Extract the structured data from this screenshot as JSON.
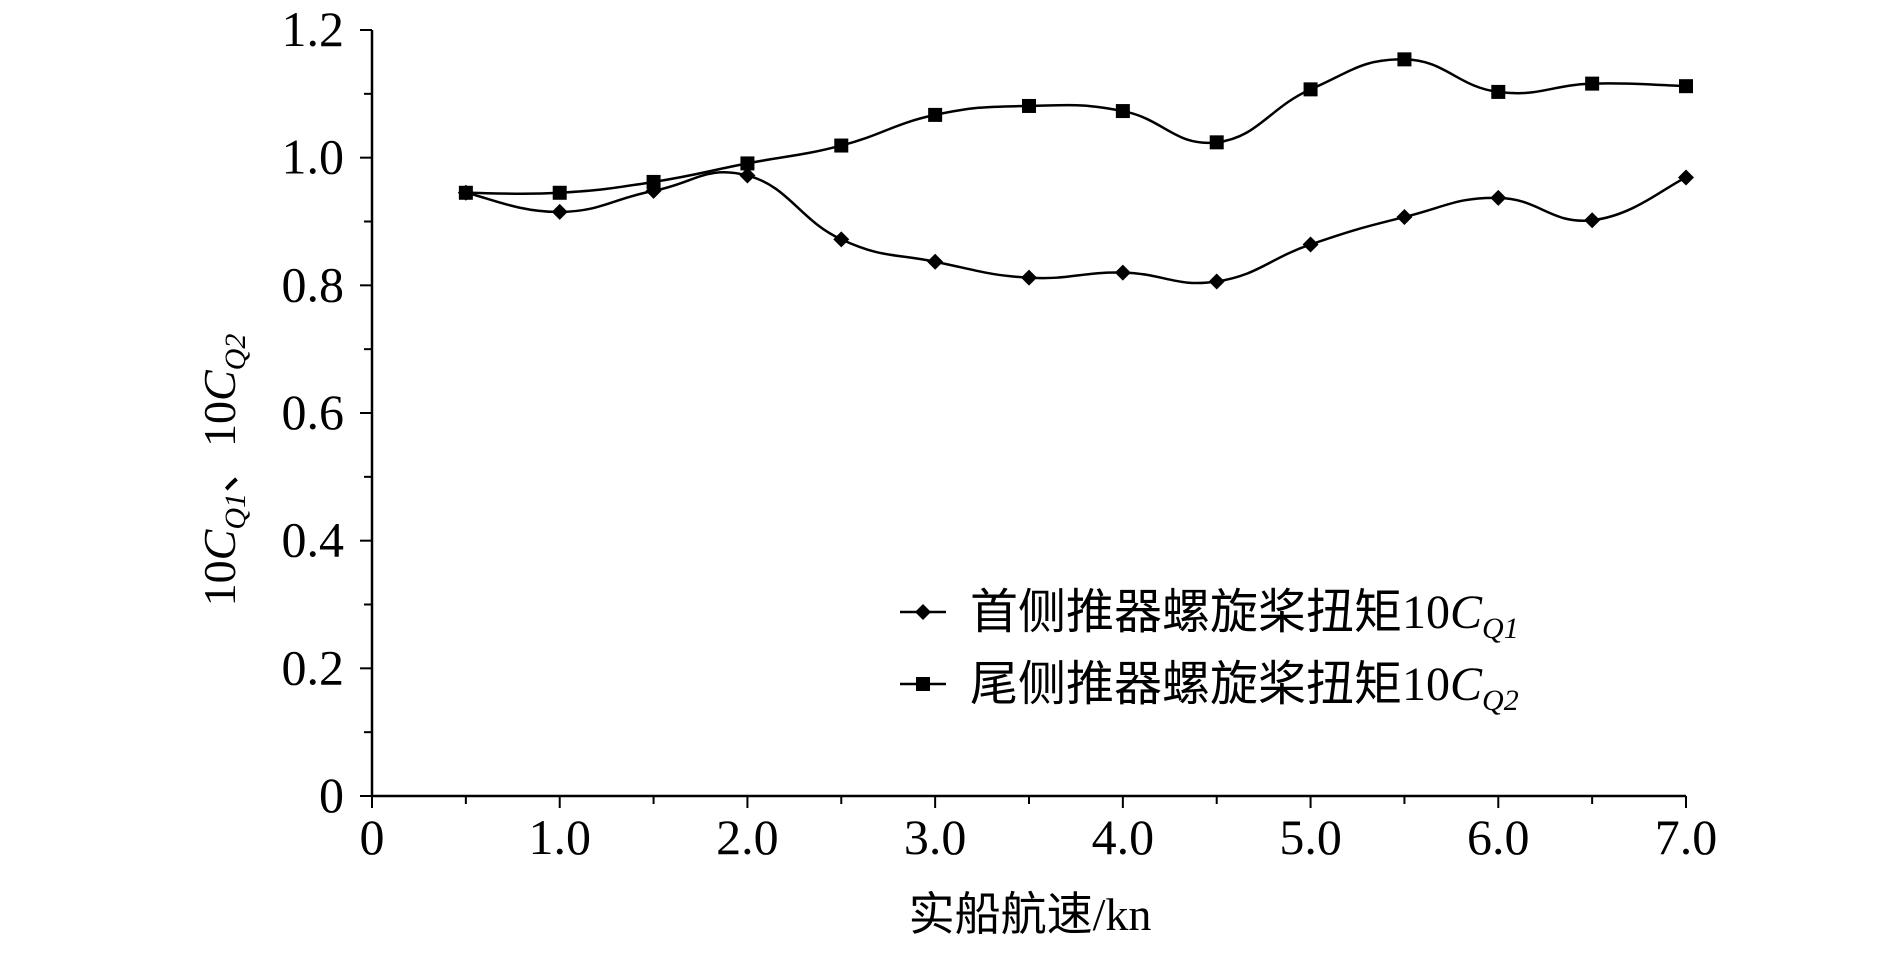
{
  "chart_data": {
    "type": "line",
    "title": "",
    "xlabel": "实船航速/kn",
    "ylabel": {
      "prefix1": "10",
      "var1": "C",
      "sub1": "Q1",
      "separator": "、",
      "prefix2": "10",
      "var2": "C",
      "sub2": "Q2"
    },
    "xlim": [
      0,
      7.0
    ],
    "ylim": [
      0,
      1.2
    ],
    "x_ticks": [
      {
        "value": 0,
        "label": "0"
      },
      {
        "value": 1,
        "label": "1.0"
      },
      {
        "value": 2,
        "label": "2.0"
      },
      {
        "value": 3,
        "label": "3.0"
      },
      {
        "value": 4,
        "label": "4.0"
      },
      {
        "value": 5,
        "label": "5.0"
      },
      {
        "value": 6,
        "label": "6.0"
      },
      {
        "value": 7,
        "label": "7.0"
      }
    ],
    "y_ticks": [
      {
        "value": 0,
        "label": "0"
      },
      {
        "value": 0.2,
        "label": "0.2"
      },
      {
        "value": 0.4,
        "label": "0.4"
      },
      {
        "value": 0.6,
        "label": "0.6"
      },
      {
        "value": 0.8,
        "label": "0.8"
      },
      {
        "value": 1.0,
        "label": "1.0"
      },
      {
        "value": 1.2,
        "label": "1.2"
      }
    ],
    "x_minor_step": 0.5,
    "y_minor_step": 0.1,
    "grid": false,
    "legend_position": "bottom-right",
    "series": [
      {
        "name": "首侧推器螺旋桨扭矩10",
        "name_var": "C",
        "name_sub": "Q1",
        "marker": "diamond",
        "color": "#000000",
        "x": [
          0.5,
          1.0,
          1.5,
          2.0,
          2.5,
          3.0,
          3.5,
          4.0,
          4.5,
          5.0,
          5.5,
          6.0,
          6.5,
          7.0
        ],
        "values": [
          0.945,
          0.915,
          0.948,
          0.972,
          0.872,
          0.837,
          0.812,
          0.82,
          0.806,
          0.864,
          0.907,
          0.937,
          0.902,
          0.969
        ]
      },
      {
        "name": "尾侧推器螺旋桨扭矩10",
        "name_var": "C",
        "name_sub": "Q2",
        "marker": "square",
        "color": "#000000",
        "x": [
          0.5,
          1.0,
          1.5,
          2.0,
          2.5,
          3.0,
          3.5,
          4.0,
          4.5,
          5.0,
          5.5,
          6.0,
          6.5,
          7.0
        ],
        "values": [
          0.945,
          0.945,
          0.962,
          0.991,
          1.019,
          1.067,
          1.081,
          1.073,
          1.024,
          1.107,
          1.154,
          1.103,
          1.116,
          1.112
        ]
      }
    ]
  }
}
